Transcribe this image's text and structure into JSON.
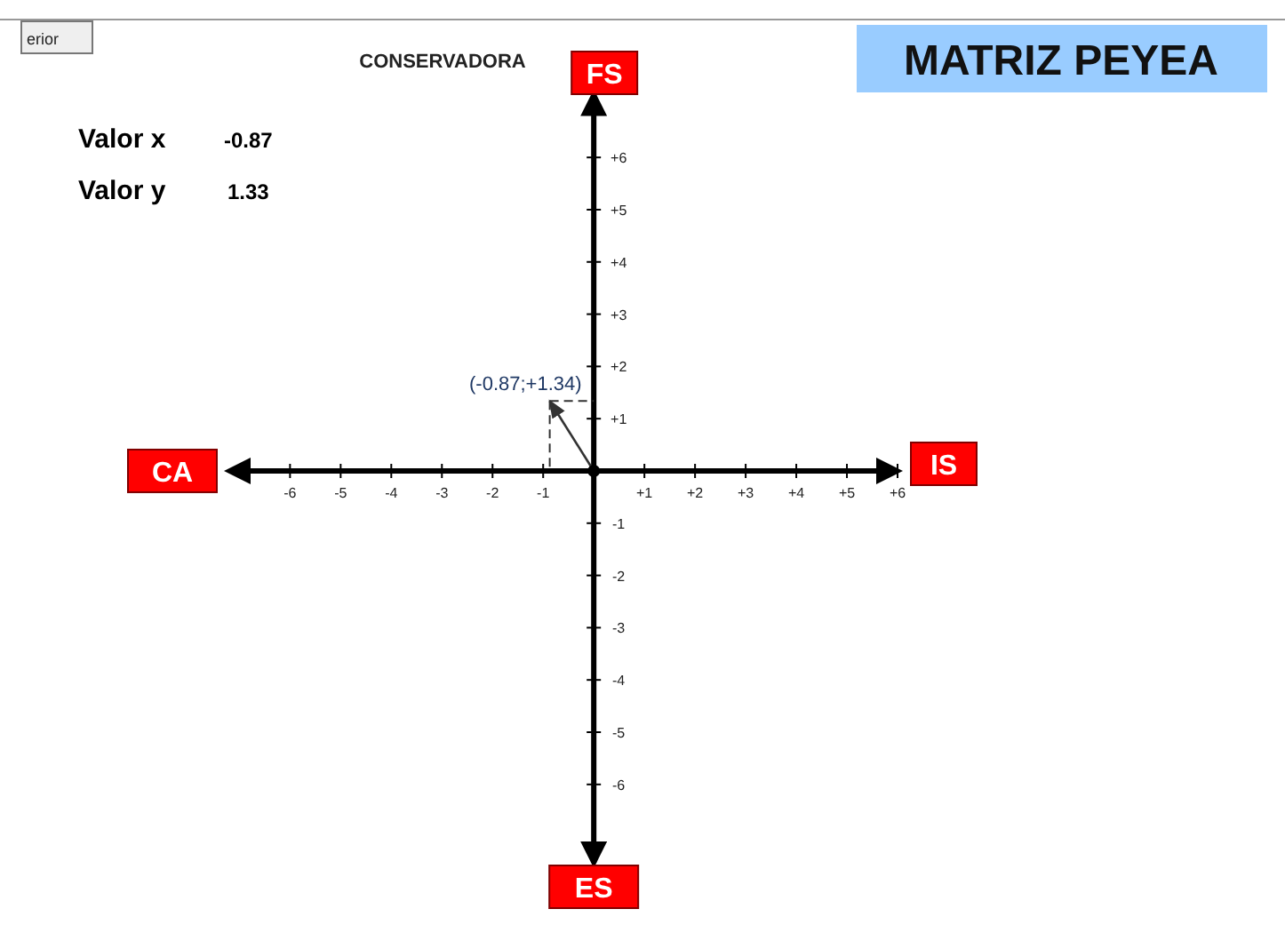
{
  "chart_data": {
    "type": "line",
    "title": "MATRIZ PEYEA",
    "series": [
      {
        "color": "#333333",
        "x": [
          0,
          -0.87
        ],
        "values": [
          0,
          1.34
        ]
      }
    ],
    "xlim": [
      -7.2,
      6
    ],
    "ylim": [
      -7.5,
      7.2
    ],
    "xticks": [
      {
        "value": -6,
        "label": "-6"
      },
      {
        "value": -5,
        "label": "-5"
      },
      {
        "value": -4,
        "label": "-4"
      },
      {
        "value": -3,
        "label": "-3"
      },
      {
        "value": -2,
        "label": "-2"
      },
      {
        "value": -1,
        "label": "-1"
      },
      {
        "value": 1,
        "label": "+1"
      },
      {
        "value": 2,
        "label": "+2"
      },
      {
        "value": 3,
        "label": "+3"
      },
      {
        "value": 4,
        "label": "+4"
      },
      {
        "value": 5,
        "label": "+5"
      },
      {
        "value": 6,
        "label": "+6"
      }
    ],
    "yticks": [
      {
        "value": -6,
        "label": "-6"
      },
      {
        "value": -5,
        "label": "-5"
      },
      {
        "value": -4,
        "label": "-4"
      },
      {
        "value": -3,
        "label": "-3"
      },
      {
        "value": -2,
        "label": "-2"
      },
      {
        "value": -1,
        "label": "-1"
      },
      {
        "value": 1,
        "label": "+1"
      },
      {
        "value": 2,
        "label": "+2"
      },
      {
        "value": 3,
        "label": "+3"
      },
      {
        "value": 4,
        "label": "+4"
      },
      {
        "value": 5,
        "label": "+5"
      },
      {
        "value": 6,
        "label": "+6"
      }
    ],
    "grid": false,
    "line_style": "solid",
    "annotations": [
      "CONSERVADORA",
      "Valor x",
      "-0.87",
      "Valor y",
      "1.33",
      "FS",
      "IS",
      "ES",
      "CA",
      "erior",
      {
        "text": "(-0.87;+1.34)",
        "x": -0.87,
        "y": 1.34
      }
    ]
  }
}
